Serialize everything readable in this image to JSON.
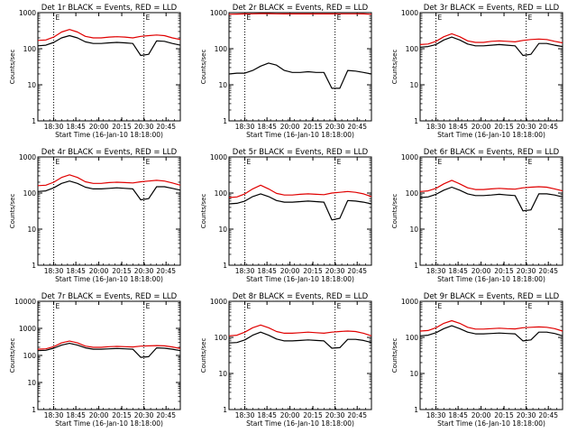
{
  "chart_data": [
    {
      "title": "Det 1r BLACK = Events, RED = LLD",
      "type": "line",
      "ylabel": "Counts/sec",
      "xlabel": "Start Time (16-Jan-10 18:18:00)",
      "x_ticks": [
        "18:30",
        "18:45",
        "20:00",
        "20:15",
        "20:30",
        "20:45"
      ],
      "y_ticks": [
        "1",
        "10",
        "100",
        "1000"
      ],
      "yscale": "log",
      "ylim": [
        1,
        1000
      ],
      "markers": [
        "18:30",
        "20:30"
      ],
      "marker_label": "E",
      "series": [
        {
          "color": "#000000",
          "x": [
            0,
            10,
            20,
            30,
            40,
            50,
            60,
            70,
            80,
            90,
            100,
            110,
            120,
            130,
            140,
            150,
            160,
            170,
            180
          ],
          "y": [
            120,
            125,
            150,
            200,
            230,
            200,
            155,
            140,
            140,
            145,
            150,
            145,
            140,
            65,
            70,
            165,
            160,
            140,
            125
          ]
        },
        {
          "color": "#e00000",
          "x": [
            0,
            10,
            20,
            30,
            40,
            50,
            60,
            70,
            80,
            90,
            100,
            110,
            120,
            130,
            140,
            150,
            160,
            170,
            180
          ],
          "y": [
            170,
            175,
            210,
            290,
            340,
            290,
            220,
            200,
            200,
            210,
            215,
            210,
            200,
            220,
            230,
            240,
            230,
            200,
            180
          ]
        }
      ]
    },
    {
      "title": "Det 2r BLACK = Events, RED = LLD",
      "type": "line",
      "ylabel": "Counts/sec",
      "xlabel": "Start Time (16-Jan-10 18:18:00)",
      "x_ticks": [
        "18:30",
        "18:45",
        "20:00",
        "20:15",
        "20:30",
        "20:45"
      ],
      "y_ticks": [
        "1",
        "10",
        "100",
        "1000"
      ],
      "yscale": "log",
      "ylim": [
        1,
        1000
      ],
      "markers": [
        "18:30",
        "20:30"
      ],
      "marker_label": "E",
      "series": [
        {
          "color": "#000000",
          "x": [
            0,
            10,
            20,
            30,
            40,
            50,
            60,
            70,
            80,
            90,
            100,
            110,
            120,
            130,
            140,
            150,
            160,
            170,
            180
          ],
          "y": [
            20,
            21,
            21,
            25,
            33,
            40,
            35,
            25,
            22,
            22,
            23,
            22,
            22,
            8,
            8,
            25,
            24,
            22,
            20
          ]
        },
        {
          "color": "#e00000",
          "x": [
            0,
            10,
            20,
            30,
            40,
            50,
            60,
            70,
            80,
            90,
            100,
            110,
            120,
            130,
            140,
            150,
            160,
            170,
            180
          ],
          "y": [
            900,
            910,
            920,
            930,
            940,
            940,
            930,
            920,
            920,
            920,
            920,
            920,
            920,
            920,
            930,
            930,
            930,
            920,
            900
          ]
        }
      ]
    },
    {
      "title": "Det 3r BLACK = Events, RED = LLD",
      "type": "line",
      "ylabel": "Counts/sec",
      "xlabel": "Start Time (16-Jan-10 18:18:00)",
      "x_ticks": [
        "18:30",
        "18:45",
        "20:00",
        "20:15",
        "20:30",
        "20:45"
      ],
      "y_ticks": [
        "1",
        "10",
        "100",
        "1000"
      ],
      "yscale": "log",
      "ylim": [
        1,
        1000
      ],
      "markers": [
        "18:30",
        "20:30"
      ],
      "marker_label": "E",
      "series": [
        {
          "color": "#000000",
          "x": [
            0,
            10,
            20,
            30,
            40,
            50,
            60,
            70,
            80,
            90,
            100,
            110,
            120,
            130,
            140,
            150,
            160,
            170,
            180
          ],
          "y": [
            110,
            115,
            130,
            175,
            210,
            175,
            135,
            120,
            120,
            125,
            130,
            125,
            120,
            65,
            70,
            140,
            140,
            125,
            115
          ]
        },
        {
          "color": "#e00000",
          "x": [
            0,
            10,
            20,
            30,
            40,
            50,
            60,
            70,
            80,
            90,
            100,
            110,
            120,
            130,
            140,
            150,
            160,
            170,
            180
          ],
          "y": [
            130,
            135,
            160,
            215,
            260,
            215,
            165,
            150,
            150,
            160,
            165,
            160,
            155,
            170,
            180,
            185,
            180,
            160,
            145
          ]
        }
      ]
    },
    {
      "title": "Det 4r BLACK = Events, RED = LLD",
      "type": "line",
      "ylabel": "Counts/sec",
      "xlabel": "Start Time (16-Jan-10 18:18:00)",
      "x_ticks": [
        "18:30",
        "18:45",
        "20:00",
        "20:15",
        "20:30",
        "20:45"
      ],
      "y_ticks": [
        "1",
        "10",
        "100",
        "1000"
      ],
      "yscale": "log",
      "ylim": [
        1,
        1000
      ],
      "markers": [
        "18:30",
        "20:30"
      ],
      "marker_label": "E",
      "series": [
        {
          "color": "#000000",
          "x": [
            0,
            10,
            20,
            30,
            40,
            50,
            60,
            70,
            80,
            90,
            100,
            110,
            120,
            130,
            140,
            150,
            160,
            170,
            180
          ],
          "y": [
            110,
            115,
            140,
            185,
            215,
            185,
            145,
            130,
            130,
            135,
            140,
            135,
            130,
            65,
            70,
            150,
            150,
            135,
            120
          ]
        },
        {
          "color": "#e00000",
          "x": [
            0,
            10,
            20,
            30,
            40,
            50,
            60,
            70,
            80,
            90,
            100,
            110,
            120,
            130,
            140,
            150,
            160,
            170,
            180
          ],
          "y": [
            160,
            165,
            200,
            270,
            320,
            270,
            205,
            185,
            185,
            195,
            200,
            195,
            190,
            205,
            215,
            225,
            215,
            190,
            165
          ]
        }
      ]
    },
    {
      "title": "Det 5r BLACK = Events, RED = LLD",
      "type": "line",
      "ylabel": "Counts/sec",
      "xlabel": "Start Time (16-Jan-10 18:18:00)",
      "x_ticks": [
        "18:30",
        "18:45",
        "20:00",
        "20:15",
        "20:30",
        "20:45"
      ],
      "y_ticks": [
        "1",
        "10",
        "100",
        "1000"
      ],
      "yscale": "log",
      "ylim": [
        1,
        1000
      ],
      "markers": [
        "18:30",
        "20:30"
      ],
      "marker_label": "E",
      "series": [
        {
          "color": "#000000",
          "x": [
            0,
            10,
            20,
            30,
            40,
            50,
            60,
            70,
            80,
            90,
            100,
            110,
            120,
            130,
            140,
            150,
            160,
            170,
            180
          ],
          "y": [
            50,
            52,
            60,
            80,
            95,
            80,
            62,
            56,
            56,
            58,
            60,
            58,
            56,
            18,
            20,
            62,
            60,
            56,
            50
          ]
        },
        {
          "color": "#e00000",
          "x": [
            0,
            10,
            20,
            30,
            40,
            50,
            60,
            70,
            80,
            90,
            100,
            110,
            120,
            130,
            140,
            150,
            160,
            170,
            180
          ],
          "y": [
            75,
            78,
            95,
            130,
            165,
            130,
            98,
            88,
            88,
            92,
            95,
            92,
            90,
            100,
            105,
            110,
            105,
            95,
            80
          ]
        }
      ]
    },
    {
      "title": "Det 6r BLACK = Events, RED = LLD",
      "type": "line",
      "ylabel": "Counts/sec",
      "xlabel": "Start Time (16-Jan-10 18:18:00)",
      "x_ticks": [
        "18:30",
        "18:45",
        "20:00",
        "20:15",
        "20:30",
        "20:45"
      ],
      "y_ticks": [
        "1",
        "10",
        "100",
        "1000"
      ],
      "yscale": "log",
      "ylim": [
        1,
        1000
      ],
      "markers": [
        "18:30",
        "20:30"
      ],
      "marker_label": "E",
      "series": [
        {
          "color": "#000000",
          "x": [
            0,
            10,
            20,
            30,
            40,
            50,
            60,
            70,
            80,
            90,
            100,
            110,
            120,
            130,
            140,
            150,
            160,
            170,
            180
          ],
          "y": [
            75,
            78,
            92,
            120,
            145,
            120,
            95,
            85,
            85,
            88,
            92,
            88,
            85,
            32,
            34,
            95,
            95,
            88,
            78
          ]
        },
        {
          "color": "#e00000",
          "x": [
            0,
            10,
            20,
            30,
            40,
            50,
            60,
            70,
            80,
            90,
            100,
            110,
            120,
            130,
            140,
            150,
            160,
            170,
            180
          ],
          "y": [
            110,
            115,
            135,
            180,
            225,
            180,
            140,
            125,
            125,
            130,
            135,
            130,
            128,
            140,
            145,
            150,
            145,
            130,
            115
          ]
        }
      ]
    },
    {
      "title": "Det 7r BLACK = Events, RED = LLD",
      "type": "line",
      "ylabel": "Counts/sec",
      "xlabel": "Start Time (16-Jan-10 18:18:00)",
      "x_ticks": [
        "18:30",
        "18:45",
        "20:00",
        "20:15",
        "20:30",
        "20:45"
      ],
      "y_ticks": [
        "1",
        "10",
        "100",
        "1000",
        "10000"
      ],
      "yscale": "log",
      "ylim": [
        1,
        10000
      ],
      "markers": [
        "18:30",
        "20:30"
      ],
      "marker_label": "E",
      "series": [
        {
          "color": "#000000",
          "x": [
            0,
            10,
            20,
            30,
            40,
            50,
            60,
            70,
            80,
            90,
            100,
            110,
            120,
            130,
            140,
            150,
            160,
            170,
            180
          ],
          "y": [
            150,
            155,
            185,
            240,
            280,
            240,
            190,
            170,
            170,
            175,
            180,
            175,
            170,
            85,
            90,
            190,
            185,
            170,
            150
          ]
        },
        {
          "color": "#e00000",
          "x": [
            0,
            10,
            20,
            30,
            40,
            50,
            60,
            70,
            80,
            90,
            100,
            110,
            120,
            130,
            140,
            150,
            160,
            170,
            180
          ],
          "y": [
            170,
            175,
            210,
            290,
            340,
            290,
            220,
            200,
            200,
            210,
            215,
            210,
            205,
            220,
            225,
            230,
            225,
            205,
            180
          ]
        }
      ]
    },
    {
      "title": "Det 8r BLACK = Events, RED = LLD",
      "type": "line",
      "ylabel": "Counts/sec",
      "xlabel": "Start Time (16-Jan-10 18:18:00)",
      "x_ticks": [
        "18:30",
        "18:45",
        "20:00",
        "20:15",
        "20:30",
        "20:45"
      ],
      "y_ticks": [
        "1",
        "10",
        "100",
        "1000"
      ],
      "yscale": "log",
      "ylim": [
        1,
        1000
      ],
      "markers": [
        "18:30",
        "20:30"
      ],
      "marker_label": "E",
      "series": [
        {
          "color": "#000000",
          "x": [
            0,
            10,
            20,
            30,
            40,
            50,
            60,
            70,
            80,
            90,
            100,
            110,
            120,
            130,
            140,
            150,
            160,
            170,
            180
          ],
          "y": [
            70,
            72,
            85,
            115,
            140,
            115,
            90,
            80,
            80,
            82,
            85,
            82,
            80,
            50,
            52,
            88,
            88,
            82,
            72
          ]
        },
        {
          "color": "#e00000",
          "x": [
            0,
            10,
            20,
            30,
            40,
            50,
            60,
            70,
            80,
            90,
            100,
            110,
            120,
            130,
            140,
            150,
            160,
            170,
            180
          ],
          "y": [
            110,
            115,
            140,
            185,
            220,
            185,
            145,
            130,
            130,
            135,
            140,
            135,
            130,
            140,
            145,
            150,
            145,
            130,
            110
          ]
        }
      ]
    },
    {
      "title": "Det 9r BLACK = Events, RED = LLD",
      "type": "line",
      "ylabel": "Counts/sec",
      "xlabel": "Start Time (16-Jan-10 18:18:00)",
      "x_ticks": [
        "18:30",
        "18:45",
        "20:00",
        "20:15",
        "20:30",
        "20:45"
      ],
      "y_ticks": [
        "1",
        "10",
        "100",
        "1000"
      ],
      "yscale": "log",
      "ylim": [
        1,
        1000
      ],
      "markers": [
        "18:30",
        "20:30"
      ],
      "marker_label": "E",
      "series": [
        {
          "color": "#000000",
          "x": [
            0,
            10,
            20,
            30,
            40,
            50,
            60,
            70,
            80,
            90,
            100,
            110,
            120,
            130,
            140,
            150,
            160,
            170,
            180
          ],
          "y": [
            110,
            115,
            135,
            175,
            210,
            175,
            140,
            125,
            125,
            128,
            132,
            128,
            125,
            80,
            85,
            140,
            140,
            128,
            110
          ]
        },
        {
          "color": "#e00000",
          "x": [
            0,
            10,
            20,
            30,
            40,
            50,
            60,
            70,
            80,
            90,
            100,
            110,
            120,
            130,
            140,
            150,
            160,
            170,
            180
          ],
          "y": [
            150,
            155,
            185,
            245,
            290,
            245,
            190,
            170,
            170,
            175,
            180,
            175,
            172,
            185,
            190,
            195,
            190,
            175,
            150
          ]
        }
      ]
    }
  ]
}
